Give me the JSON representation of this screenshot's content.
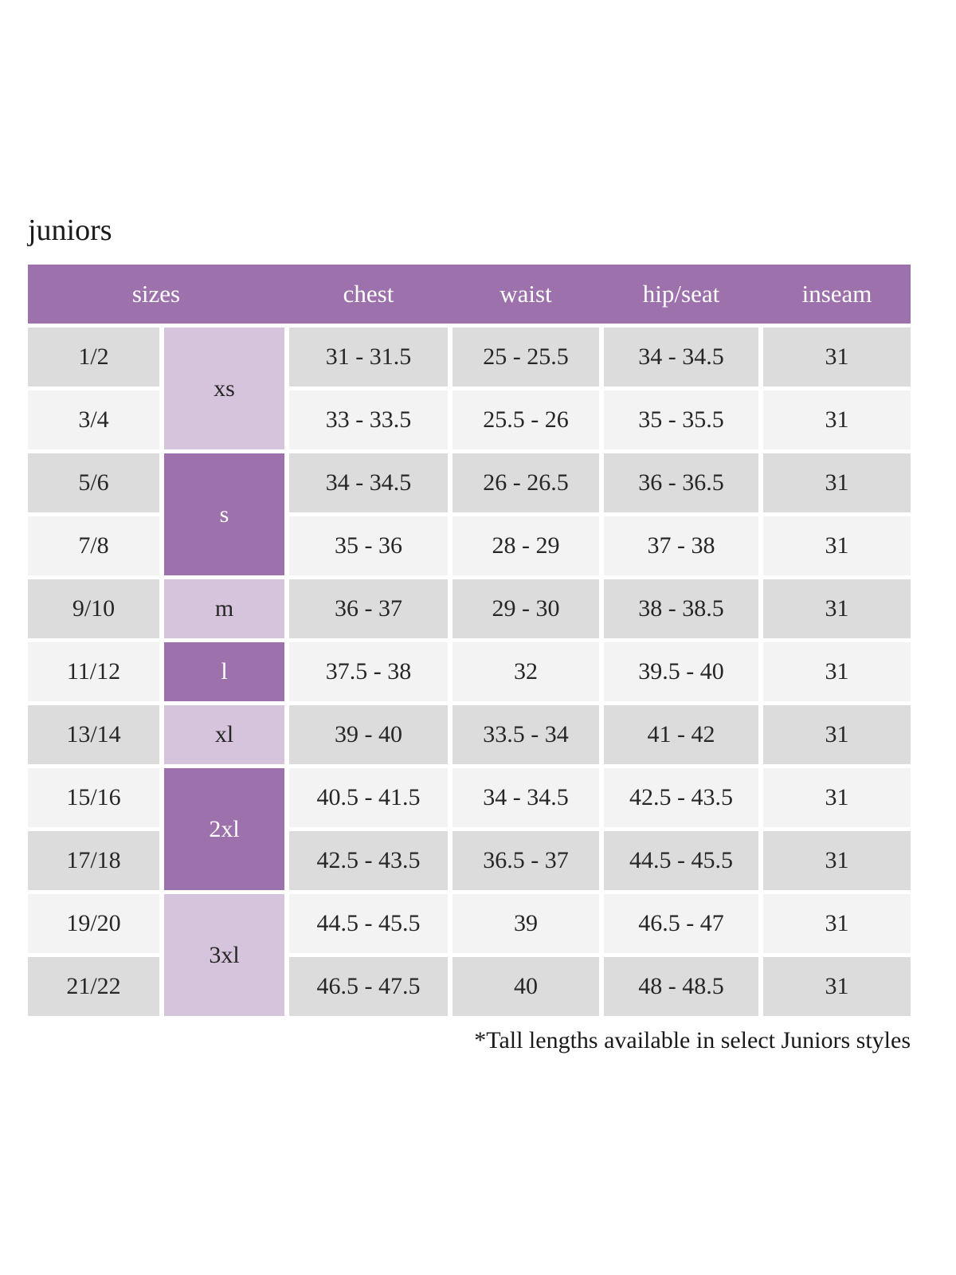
{
  "page": {
    "title": "juniors",
    "footnote": "*Tall lengths available in select Juniors styles"
  },
  "colors": {
    "header_purple": "#9d72ac",
    "size_label_dark_purple": "#9d72ac",
    "size_label_light_purple": "#d5c4db",
    "row_gray": "#dcdcdc",
    "row_light": "#f4f3f4"
  },
  "table": {
    "headers": {
      "sizes": "sizes",
      "chest": "chest",
      "waist": "waist",
      "hip_seat": "hip/seat",
      "inseam": "inseam"
    },
    "size_groups": [
      {
        "label": "xs",
        "rows": [
          "1/2",
          "3/4"
        ]
      },
      {
        "label": "s",
        "rows": [
          "5/6",
          "7/8"
        ]
      },
      {
        "label": "m",
        "rows": [
          "9/10"
        ]
      },
      {
        "label": "l",
        "rows": [
          "11/12"
        ]
      },
      {
        "label": "xl",
        "rows": [
          "13/14"
        ]
      },
      {
        "label": "2xl",
        "rows": [
          "15/16",
          "17/18"
        ]
      },
      {
        "label": "3xl",
        "rows": [
          "19/20",
          "21/22"
        ]
      }
    ],
    "rows": [
      {
        "size": "1/2",
        "chest": "31 - 31.5",
        "waist": "25 - 25.5",
        "hip_seat": "34 - 34.5",
        "inseam": "31"
      },
      {
        "size": "3/4",
        "chest": "33 - 33.5",
        "waist": "25.5 - 26",
        "hip_seat": "35 - 35.5",
        "inseam": "31"
      },
      {
        "size": "5/6",
        "chest": "34 - 34.5",
        "waist": "26 - 26.5",
        "hip_seat": "36 - 36.5",
        "inseam": "31"
      },
      {
        "size": "7/8",
        "chest": "35 - 36",
        "waist": "28 - 29",
        "hip_seat": "37 - 38",
        "inseam": "31"
      },
      {
        "size": "9/10",
        "chest": "36 - 37",
        "waist": "29 - 30",
        "hip_seat": "38 - 38.5",
        "inseam": "31"
      },
      {
        "size": "11/12",
        "chest": "37.5 - 38",
        "waist": "32",
        "hip_seat": "39.5 - 40",
        "inseam": "31"
      },
      {
        "size": "13/14",
        "chest": "39 - 40",
        "waist": "33.5 - 34",
        "hip_seat": "41 - 42",
        "inseam": "31"
      },
      {
        "size": "15/16",
        "chest": "40.5 - 41.5",
        "waist": "34 - 34.5",
        "hip_seat": "42.5 - 43.5",
        "inseam": "31"
      },
      {
        "size": "17/18",
        "chest": "42.5 - 43.5",
        "waist": "36.5 - 37",
        "hip_seat": "44.5 - 45.5",
        "inseam": "31"
      },
      {
        "size": "19/20",
        "chest": "44.5 - 45.5",
        "waist": "39",
        "hip_seat": "46.5 - 47",
        "inseam": "31"
      },
      {
        "size": "21/22",
        "chest": "46.5 - 47.5",
        "waist": "40",
        "hip_seat": "48 - 48.5",
        "inseam": "31"
      }
    ]
  }
}
